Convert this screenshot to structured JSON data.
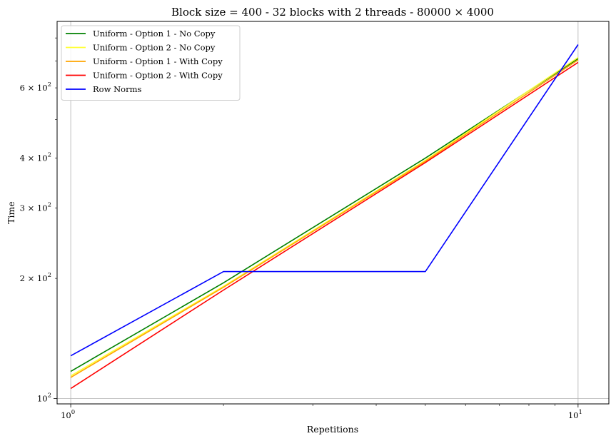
{
  "chart_data": {
    "type": "line",
    "title": "Block size = 400 - 32 blocks with 2 threads - 80000 × 4000",
    "xlabel": "Repetitions",
    "ylabel": "Time",
    "x_scale": "log",
    "y_scale": "log",
    "xlim": [
      0.94,
      11.5
    ],
    "ylim": [
      97,
      880
    ],
    "grid": "major",
    "legend_position": "top-left",
    "x_major_ticks": [
      {
        "value": 1,
        "label": "10",
        "exp": "0"
      },
      {
        "value": 10,
        "label": "10",
        "exp": "1"
      }
    ],
    "x_minor_ticks": [
      2,
      3,
      4,
      5,
      6,
      7,
      8,
      9
    ],
    "y_major_ticks": [
      {
        "value": 100,
        "label": "10",
        "exp": "2"
      }
    ],
    "y_labeled_minor_ticks": [
      {
        "value": 200,
        "label": "2 × 10",
        "exp": "2"
      },
      {
        "value": 300,
        "label": "3 × 10",
        "exp": "2"
      },
      {
        "value": 400,
        "label": "4 × 10",
        "exp": "2"
      },
      {
        "value": 600,
        "label": "6 × 10",
        "exp": "2"
      }
    ],
    "y_minor_ticks": [
      500,
      700,
      800
    ],
    "x": [
      1,
      2,
      5,
      10
    ],
    "series": [
      {
        "name": "Uniform - Option 1 - No Copy",
        "color": "#008000",
        "values": [
          117,
          195,
          400,
          710
        ]
      },
      {
        "name": "Uniform - Option 2 - No Copy",
        "color": "#ffff33",
        "values": [
          114,
          191,
          395,
          715
        ]
      },
      {
        "name": "Uniform - Option 1 - With Copy",
        "color": "#ffa500",
        "values": [
          113,
          190,
          393,
          705
        ]
      },
      {
        "name": "Uniform - Option 2 - With Copy",
        "color": "#ff0000",
        "values": [
          106,
          187,
          390,
          695
        ]
      },
      {
        "name": "Row Norms",
        "color": "#0000ff",
        "values": [
          128,
          208,
          208,
          770
        ]
      }
    ]
  }
}
